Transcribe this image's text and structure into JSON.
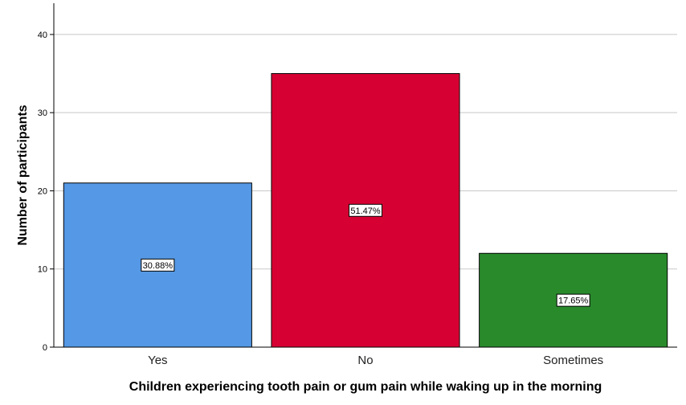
{
  "chart_data": {
    "type": "bar",
    "title": "",
    "xlabel": "Children experiencing tooth pain or gum pain while waking up in the morning",
    "ylabel": "Number of participants",
    "ylim": [
      0,
      44
    ],
    "yticks": [
      0,
      10,
      20,
      30,
      40
    ],
    "grid": true,
    "legend": "none",
    "categories": [
      "Yes",
      "No",
      "Sometimes"
    ],
    "values": [
      21,
      35,
      12
    ],
    "data_labels": [
      "30.88%",
      "51.47%",
      "17.65%"
    ],
    "colors": [
      "#5598E5",
      "#D70033",
      "#298A2C"
    ]
  }
}
